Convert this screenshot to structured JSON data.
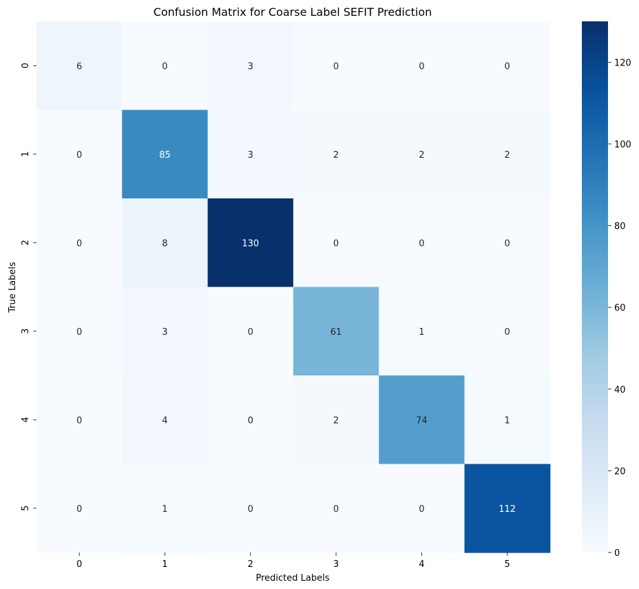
{
  "chart_data": {
    "type": "heatmap",
    "title": "Confusion Matrix for Coarse Label SEFIT Prediction",
    "xlabel": "Predicted Labels",
    "ylabel": "True Labels",
    "x_categories": [
      "0",
      "1",
      "2",
      "3",
      "4",
      "5"
    ],
    "y_categories": [
      "0",
      "1",
      "2",
      "3",
      "4",
      "5"
    ],
    "matrix": [
      [
        6,
        0,
        3,
        0,
        0,
        0
      ],
      [
        0,
        85,
        3,
        2,
        2,
        2
      ],
      [
        0,
        8,
        130,
        0,
        0,
        0
      ],
      [
        0,
        3,
        0,
        61,
        1,
        0
      ],
      [
        0,
        4,
        0,
        2,
        74,
        1
      ],
      [
        0,
        1,
        0,
        0,
        0,
        112
      ]
    ],
    "vmin": 0,
    "vmax": 130,
    "colormap": "Blues",
    "colorbar_ticks": [
      0,
      20,
      40,
      60,
      80,
      100,
      120
    ],
    "grid": false,
    "legend_position": "right"
  }
}
